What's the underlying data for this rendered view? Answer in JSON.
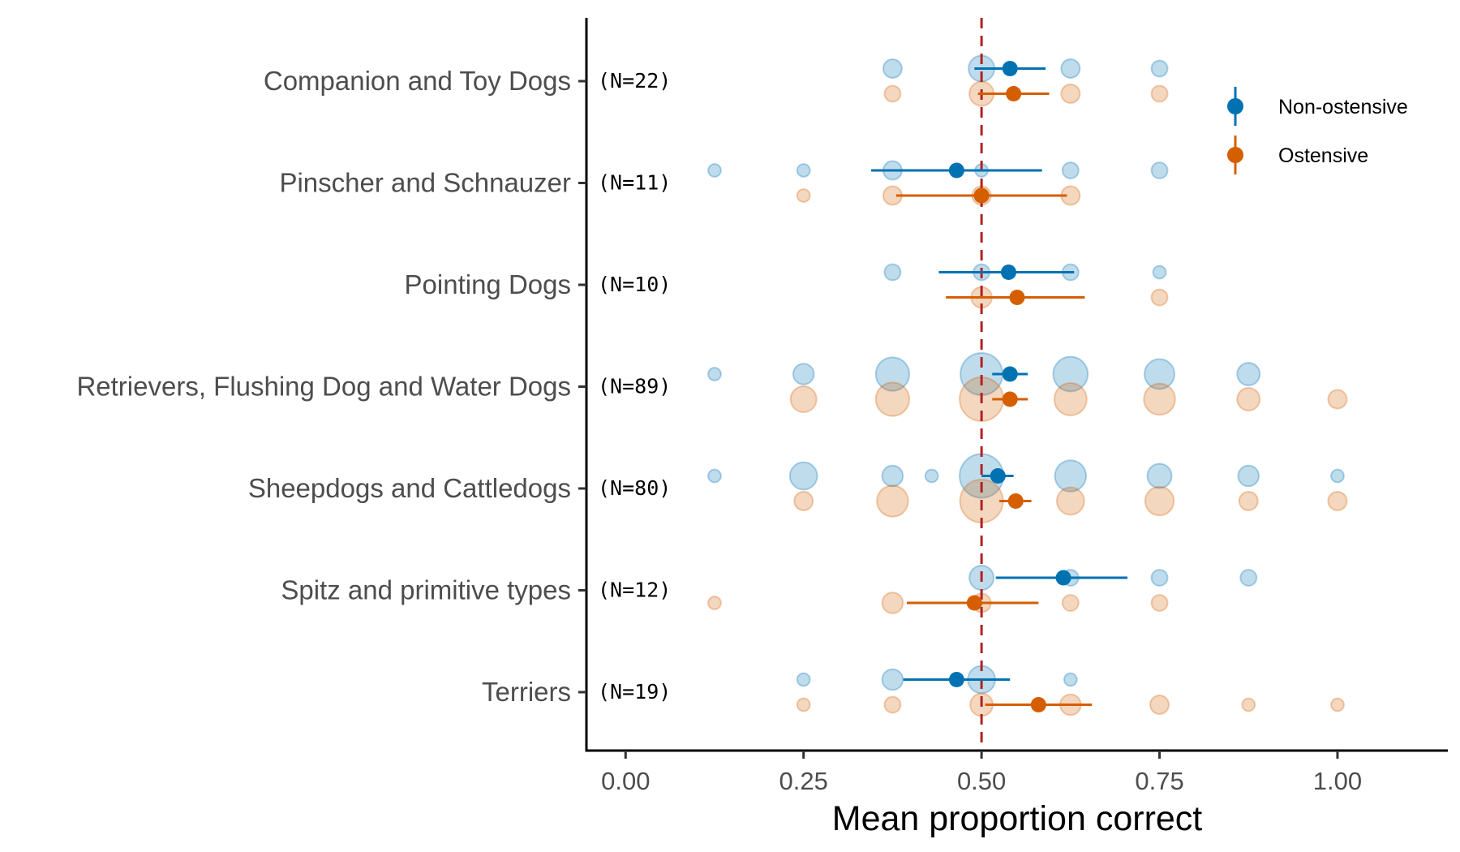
{
  "chart_data": {
    "type": "scatter",
    "xlabel": "Mean proportion correct",
    "ylabel": "",
    "xlim": [
      -0.055,
      1.155
    ],
    "x_ticks": [
      0,
      0.25,
      0.5,
      0.75,
      1
    ],
    "x_tick_labels": [
      "0.00",
      "0.25",
      "0.50",
      "0.75",
      "1.00"
    ],
    "reference_line": 0.5,
    "reference_line_color": "#B22222",
    "grid": false,
    "legend_position": "top-right",
    "colors": {
      "Non-ostensive": "#0072B2",
      "Ostensive": "#D55E00"
    },
    "series": [
      {
        "name": "Non-ostensive",
        "color": "#0072B2"
      },
      {
        "name": "Ostensive",
        "color": "#D55E00"
      }
    ],
    "categories": [
      {
        "label": "Companion and Toy Dogs",
        "n_label": "(N=22)",
        "non_ostensive": {
          "mean": 0.54,
          "ci": [
            0.49,
            0.59
          ],
          "points": [
            [
              0.375,
              3
            ],
            [
              0.5,
              7
            ],
            [
              0.625,
              3
            ],
            [
              0.75,
              2
            ]
          ]
        },
        "ostensive": {
          "mean": 0.545,
          "ci": [
            0.495,
            0.595
          ],
          "points": [
            [
              0.375,
              2
            ],
            [
              0.5,
              6
            ],
            [
              0.625,
              3
            ],
            [
              0.75,
              2
            ]
          ]
        }
      },
      {
        "label": "Pinscher and Schnauzer",
        "n_label": "(N=11)",
        "non_ostensive": {
          "mean": 0.465,
          "ci": [
            0.345,
            0.585
          ],
          "points": [
            [
              0.125,
              1
            ],
            [
              0.25,
              1
            ],
            [
              0.375,
              3
            ],
            [
              0.5,
              1
            ],
            [
              0.625,
              2
            ],
            [
              0.75,
              2
            ]
          ]
        },
        "ostensive": {
          "mean": 0.5,
          "ci": [
            0.38,
            0.62
          ],
          "points": [
            [
              0.25,
              1
            ],
            [
              0.375,
              3
            ],
            [
              0.5,
              3
            ],
            [
              0.625,
              3
            ]
          ]
        }
      },
      {
        "label": "Pointing Dogs",
        "n_label": "(N=10)",
        "non_ostensive": {
          "mean": 0.538,
          "ci": [
            0.44,
            0.63
          ],
          "points": [
            [
              0.375,
              2
            ],
            [
              0.5,
              2
            ],
            [
              0.625,
              2
            ],
            [
              0.75,
              1
            ]
          ]
        },
        "ostensive": {
          "mean": 0.55,
          "ci": [
            0.45,
            0.645
          ],
          "points": [
            [
              0.5,
              4
            ],
            [
              0.75,
              2
            ]
          ]
        }
      },
      {
        "label": "Retrievers, Flushing Dog and Water Dogs",
        "n_label": "(N=89)",
        "non_ostensive": {
          "mean": 0.54,
          "ci": [
            0.515,
            0.565
          ],
          "points": [
            [
              0.125,
              1
            ],
            [
              0.25,
              4
            ],
            [
              0.375,
              13
            ],
            [
              0.5,
              22
            ],
            [
              0.625,
              14
            ],
            [
              0.75,
              10
            ],
            [
              0.875,
              5
            ]
          ]
        },
        "ostensive": {
          "mean": 0.54,
          "ci": [
            0.515,
            0.565
          ],
          "points": [
            [
              0.25,
              7
            ],
            [
              0.375,
              13
            ],
            [
              0.5,
              24
            ],
            [
              0.625,
              12
            ],
            [
              0.75,
              11
            ],
            [
              0.875,
              5
            ],
            [
              1,
              3
            ]
          ]
        }
      },
      {
        "label": "Sheepdogs and Cattledogs",
        "n_label": "(N=80)",
        "non_ostensive": {
          "mean": 0.523,
          "ci": [
            0.5,
            0.545
          ],
          "points": [
            [
              0.125,
              1
            ],
            [
              0.25,
              8
            ],
            [
              0.375,
              4
            ],
            [
              0.43,
              1
            ],
            [
              0.5,
              24
            ],
            [
              0.625,
              11
            ],
            [
              0.75,
              6
            ],
            [
              0.875,
              4
            ],
            [
              1,
              1
            ]
          ]
        },
        "ostensive": {
          "mean": 0.548,
          "ci": [
            0.525,
            0.57
          ],
          "points": [
            [
              0.25,
              3
            ],
            [
              0.375,
              11
            ],
            [
              0.5,
              23
            ],
            [
              0.625,
              8
            ],
            [
              0.75,
              9
            ],
            [
              0.875,
              3
            ],
            [
              1,
              3
            ]
          ]
        }
      },
      {
        "label": "Spitz and primitive types",
        "n_label": "(N=12)",
        "non_ostensive": {
          "mean": 0.615,
          "ci": [
            0.52,
            0.705
          ],
          "points": [
            [
              0.5,
              6
            ],
            [
              0.625,
              2
            ],
            [
              0.75,
              2
            ],
            [
              0.875,
              2
            ]
          ]
        },
        "ostensive": {
          "mean": 0.49,
          "ci": [
            0.395,
            0.58
          ],
          "points": [
            [
              0.125,
              1
            ],
            [
              0.375,
              4
            ],
            [
              0.5,
              3
            ],
            [
              0.625,
              2
            ],
            [
              0.75,
              2
            ]
          ]
        }
      },
      {
        "label": "Terriers",
        "n_label": "(N=19)",
        "non_ostensive": {
          "mean": 0.465,
          "ci": [
            0.39,
            0.54
          ],
          "points": [
            [
              0.25,
              1
            ],
            [
              0.375,
              4
            ],
            [
              0.5,
              8
            ],
            [
              0.625,
              1
            ]
          ]
        },
        "ostensive": {
          "mean": 0.58,
          "ci": [
            0.505,
            0.655
          ],
          "points": [
            [
              0.25,
              1
            ],
            [
              0.375,
              2
            ],
            [
              0.5,
              5
            ],
            [
              0.625,
              4
            ],
            [
              0.75,
              3
            ],
            [
              0.875,
              1
            ],
            [
              1,
              1
            ]
          ]
        }
      }
    ]
  }
}
